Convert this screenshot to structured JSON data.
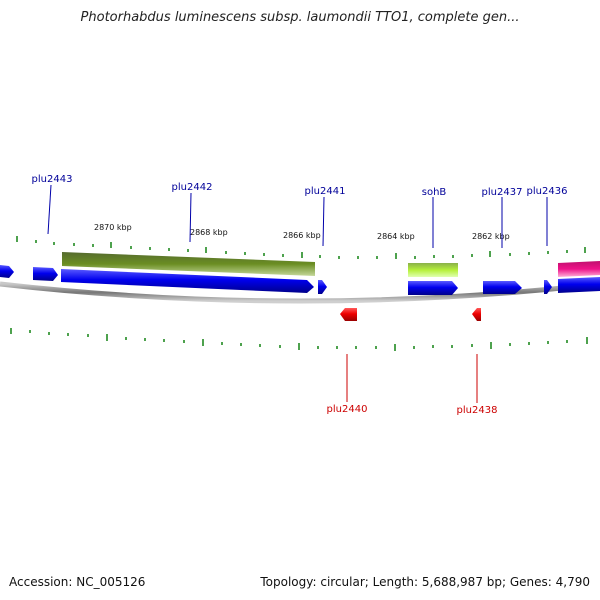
{
  "title": "Photorhabdus luminescens subsp. laumondii TTO1, complete gen...",
  "footer": {
    "accession": "Accession: NC_005126",
    "summary": "Topology: circular; Length: 5,688,987 bp; Genes: 4,790"
  },
  "colors": {
    "forward_gene": "#0000ee",
    "reverse_gene": "#ee0000",
    "tick": "#228b22",
    "backbone": "#888888",
    "label_forward": "#000099",
    "label_reverse": "#cc0000",
    "feature_olive": "#6b8e23",
    "feature_lime": "#9acd32",
    "feature_magenta": "#ee1289"
  },
  "kbp_labels": [
    "2870 kbp",
    "2868 kbp",
    "2866 kbp",
    "2864 kbp",
    "2862 kbp"
  ],
  "gene_labels_forward": [
    "plu2443",
    "plu2442",
    "plu2441",
    "sohB",
    "plu2437",
    "plu2436"
  ],
  "gene_labels_reverse": [
    "plu2440",
    "plu2438"
  ]
}
